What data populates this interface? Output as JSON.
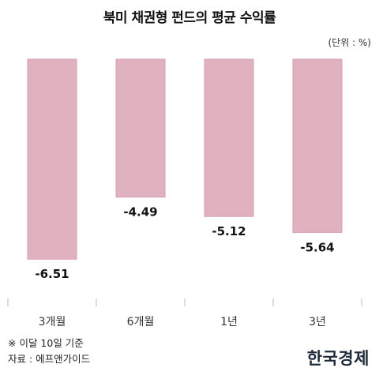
{
  "title": "북미 채권형 펀드의 평균 수익률",
  "unit": "(단위 : %)",
  "notes": {
    "date_note": "※ 이달 10일 기준",
    "source": "자료 : 에프앤가이드"
  },
  "logo": "한국경제",
  "colors": {
    "bar_fill": "#e0b1bf",
    "bar_stroke": "#d79eb0"
  },
  "chart_data": {
    "type": "bar",
    "title": "북미 채권형 펀드의 평균 수익률",
    "categories": [
      "3개월",
      "6개월",
      "1년",
      "3년"
    ],
    "values": [
      -6.51,
      -4.49,
      -5.12,
      -5.64
    ],
    "value_labels": [
      "-6.51",
      "-4.49",
      "-5.12",
      "-5.64"
    ],
    "ylabel": "",
    "xlabel": "",
    "unit": "%",
    "grid": false,
    "legend": "none"
  }
}
